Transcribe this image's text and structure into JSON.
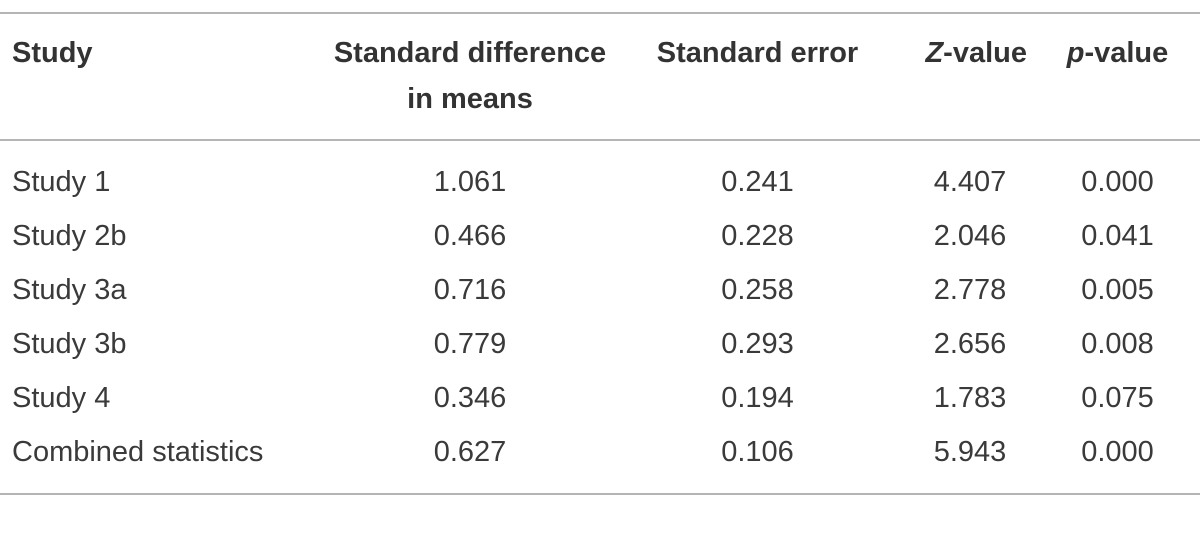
{
  "table": {
    "header": [
      "Study",
      "Standard difference in means",
      "Standard error",
      "Z-value",
      "p-value"
    ],
    "rows": [
      [
        "Study 1",
        "1.061",
        "0.241",
        "4.407",
        "0.000"
      ],
      [
        "Study 2b",
        "0.466",
        "0.228",
        "2.046",
        "0.041"
      ],
      [
        "Study 3a",
        "0.716",
        "0.258",
        "2.778",
        "0.005"
      ],
      [
        "Study 3b",
        "0.779",
        "0.293",
        "2.656",
        "0.008"
      ],
      [
        "Study 4",
        "0.346",
        "0.194",
        "1.783",
        "0.075"
      ],
      [
        "Combined statistics",
        "0.627",
        "0.106",
        "5.943",
        "0.000"
      ]
    ]
  }
}
